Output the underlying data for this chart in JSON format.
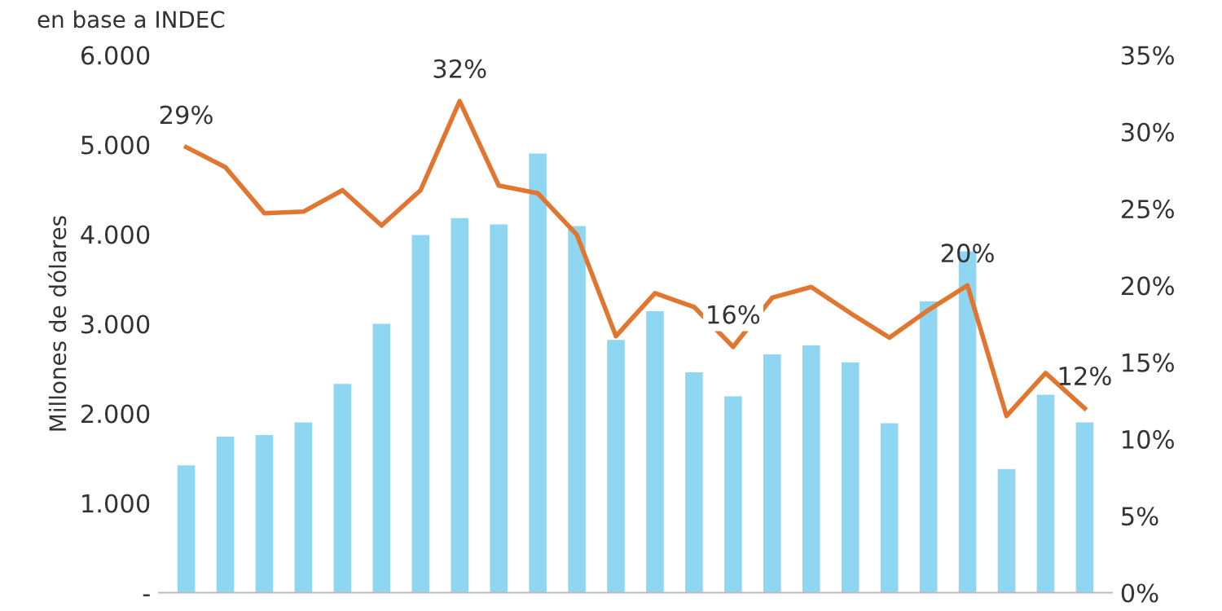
{
  "chart_data": {
    "type": "bar",
    "ylabel": "Millones de dólares",
    "annotations": [
      "en base a INDEC"
    ],
    "categories": [
      null,
      null,
      null,
      null,
      null,
      null,
      null,
      null,
      null,
      null,
      null,
      null,
      null,
      null,
      null,
      null,
      null,
      null,
      null,
      null,
      null,
      null,
      null,
      null
    ],
    "series": [
      {
        "color": "#8fd6f2",
        "values": [
          1420,
          1740,
          1760,
          1900,
          2330,
          3000,
          3990,
          4180,
          4110,
          4900,
          4090,
          2820,
          3140,
          2460,
          2190,
          2660,
          2760,
          2570,
          1890,
          3250,
          3810,
          1380,
          2210,
          1900
        ]
      },
      {
        "type": "line",
        "axis": "y2",
        "color": "#e0762f",
        "values": [
          29,
          27.7,
          24.7,
          24.8,
          26.2,
          23.9,
          26.2,
          32,
          26.5,
          26,
          23.3,
          16.7,
          19.5,
          18.6,
          16,
          19.2,
          19.9,
          18.2,
          16.6,
          18.4,
          20,
          11.5,
          14.3,
          12
        ],
        "value_labels": [
          "29%",
          null,
          null,
          null,
          null,
          null,
          null,
          "32%",
          null,
          null,
          null,
          null,
          null,
          null,
          "16%",
          null,
          null,
          null,
          null,
          null,
          "20%",
          null,
          null,
          "12%"
        ]
      }
    ],
    "ylim": [
      0,
      6000
    ],
    "yticks": [
      {
        "value": 0,
        "label": "-"
      },
      {
        "value": 1000,
        "label": "1.000"
      },
      {
        "value": 2000,
        "label": "2.000"
      },
      {
        "value": 3000,
        "label": "3.000"
      },
      {
        "value": 4000,
        "label": "4.000"
      },
      {
        "value": 5000,
        "label": "5.000"
      },
      {
        "value": 6000,
        "label": "6.000"
      }
    ],
    "y2lim": [
      0,
      35
    ],
    "y2ticks": [
      {
        "value": 0,
        "label": "0%"
      },
      {
        "value": 5,
        "label": "5%"
      },
      {
        "value": 10,
        "label": "10%"
      },
      {
        "value": 15,
        "label": "15%"
      },
      {
        "value": 20,
        "label": "20%"
      },
      {
        "value": 25,
        "label": "25%"
      },
      {
        "value": 30,
        "label": "30%"
      },
      {
        "value": 35,
        "label": "35%"
      }
    ],
    "grid": false,
    "legend": false
  }
}
